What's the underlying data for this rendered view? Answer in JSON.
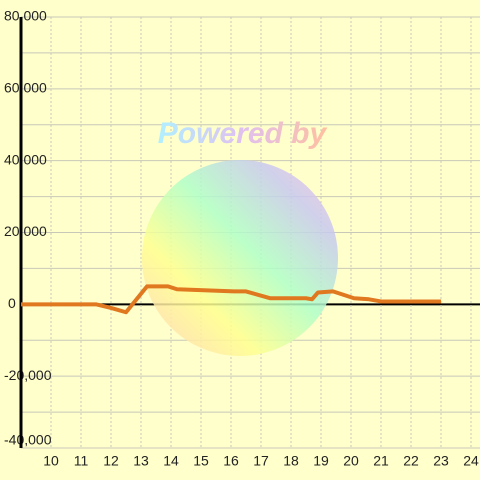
{
  "chart_data": {
    "type": "line",
    "watermark": "Powered by",
    "x": [
      9,
      11.5,
      12,
      12.5,
      13.2,
      13.9,
      14.2,
      16.1,
      16.5,
      17.3,
      18.5,
      18.7,
      18.9,
      19.4,
      20.1,
      20.6,
      21,
      23
    ],
    "series": [
      {
        "color": "#e07820",
        "values": [
          0,
          0,
          -1000,
          -2200,
          5000,
          5000,
          4200,
          3600,
          3600,
          1700,
          1700,
          1400,
          3300,
          3600,
          1700,
          1400,
          800,
          800
        ]
      }
    ],
    "xlim": [
      9,
      24.3
    ],
    "xticks": [
      10,
      11,
      12,
      13,
      14,
      15,
      16,
      17,
      18,
      19,
      20,
      21,
      22,
      23,
      24
    ],
    "ylim": [
      -40000,
      80000
    ],
    "yticks": [
      {
        "value": 80000,
        "label": "80,000"
      },
      {
        "value": 60000,
        "label": "60,000"
      },
      {
        "value": 40000,
        "label": "40,000"
      },
      {
        "value": 20000,
        "label": "20,000"
      },
      0,
      {
        "value": -20000,
        "label": "-20,000"
      },
      {
        "value": -40000,
        "label": "-40,000"
      }
    ],
    "yminor": [
      70000,
      50000,
      30000,
      10000,
      -10000,
      -30000
    ],
    "grid": true
  }
}
